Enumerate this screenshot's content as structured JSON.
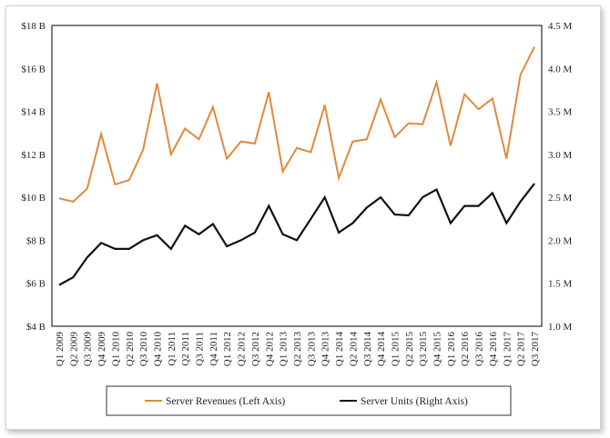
{
  "chart_data": {
    "type": "line",
    "categories": [
      "Q1 2009",
      "Q2 2009",
      "Q3 2009",
      "Q4 2009",
      "Q1 2010",
      "Q2 2010",
      "Q3 2010",
      "Q4 2010",
      "Q1 2011",
      "Q2 2011",
      "Q3 2011",
      "Q4 2011",
      "Q1 2012",
      "Q2 2012",
      "Q3 2012",
      "Q4 2012",
      "Q1 2013",
      "Q2 2013",
      "Q3 2013",
      "Q4 2013",
      "Q1 2014",
      "Q2 2014",
      "Q3 2014",
      "Q4 2014",
      "Q1 2015",
      "Q2 2015",
      "Q3 2015",
      "Q4 2015",
      "Q1 2016",
      "Q2 2016",
      "Q3 2016",
      "Q4 2016",
      "Q1 2017",
      "Q2 2017",
      "Q3 2017"
    ],
    "series": [
      {
        "name": "Server Revenues (Left Axis)",
        "axis": "left",
        "color": "#E08A3C",
        "values": [
          9.95,
          9.8,
          10.4,
          12.95,
          10.6,
          10.8,
          12.2,
          15.3,
          12.0,
          13.2,
          12.7,
          14.2,
          11.8,
          12.6,
          12.5,
          14.9,
          11.2,
          12.3,
          12.1,
          14.3,
          10.9,
          12.6,
          12.7,
          14.55,
          12.8,
          13.45,
          13.4,
          15.35,
          12.4,
          14.8,
          14.1,
          14.6,
          11.8,
          15.7,
          17.0
        ]
      },
      {
        "name": "Server Units (Right Axis)",
        "axis": "right",
        "color": "#111111",
        "values": [
          1.48,
          1.57,
          1.8,
          1.97,
          1.9,
          1.9,
          2.0,
          2.06,
          1.9,
          2.17,
          2.07,
          2.19,
          1.93,
          2.0,
          2.09,
          2.4,
          2.07,
          2.0,
          2.25,
          2.5,
          2.09,
          2.2,
          2.38,
          2.5,
          2.3,
          2.29,
          2.5,
          2.59,
          2.2,
          2.4,
          2.4,
          2.55,
          2.2,
          2.45,
          2.66
        ]
      }
    ],
    "left_axis": {
      "ylim": [
        4,
        18
      ],
      "ticks": [
        "$4 B",
        "$6 B",
        "$8 B",
        "$10 B",
        "$12 B",
        "$14 B",
        "$16 B",
        "$18 B"
      ]
    },
    "right_axis": {
      "ylim": [
        1.0,
        4.5
      ],
      "ticks": [
        "1.0 M",
        "1.5 M",
        "2.0 M",
        "2.5 M",
        "3.0 M",
        "3.5 M",
        "4.0 M",
        "4.5 M"
      ]
    },
    "grid": false,
    "legend_position": "bottom"
  }
}
